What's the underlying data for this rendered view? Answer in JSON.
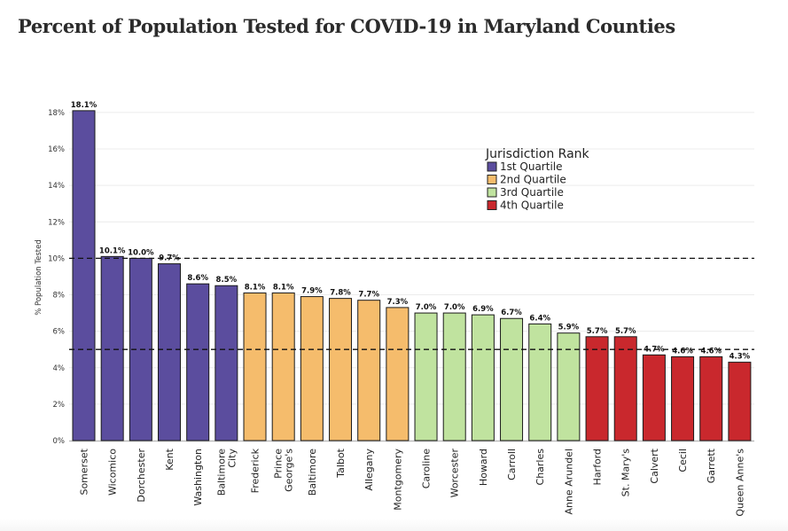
{
  "page": {
    "title": "Percent of Population Tested for COVID-19 in Maryland Counties"
  },
  "chart_data": {
    "type": "bar",
    "title": "Percent of Population Tested for COVID-19 in Maryland Counties",
    "xlabel": "",
    "ylabel": "% Population Tested",
    "ylim": [
      0,
      18.5
    ],
    "yticks": [
      0,
      2,
      4,
      6,
      8,
      10,
      12,
      14,
      16,
      18
    ],
    "ytick_labels": [
      "0%",
      "2%",
      "4%",
      "6%",
      "8%",
      "10%",
      "12%",
      "14%",
      "16%",
      "18%"
    ],
    "grid": true,
    "reference_lines": [
      10,
      5
    ],
    "categories": [
      "Somerset",
      "Wicomico",
      "Dorchester",
      "Kent",
      "Washington",
      "Baltimore City",
      "Frederick",
      "Prince George's",
      "Baltimore",
      "Talbot",
      "Allegany",
      "Montgomery",
      "Caroline",
      "Worcester",
      "Howard",
      "Carroll",
      "Charles",
      "Anne Arundel",
      "Harford",
      "St. Mary's",
      "Calvert",
      "Cecil",
      "Garrett",
      "Queen Anne's"
    ],
    "category_label_lines": [
      [
        "Somerset"
      ],
      [
        "Wicomico"
      ],
      [
        "Dorchester"
      ],
      [
        "Kent"
      ],
      [
        "Washington"
      ],
      [
        "Baltimore",
        "City"
      ],
      [
        "Frederick"
      ],
      [
        "Prince",
        "George's"
      ],
      [
        "Baltimore"
      ],
      [
        "Talbot"
      ],
      [
        "Allegany"
      ],
      [
        "Montgomery"
      ],
      [
        "Caroline"
      ],
      [
        "Worcester"
      ],
      [
        "Howard"
      ],
      [
        "Carroll"
      ],
      [
        "Charles"
      ],
      [
        "Anne Arundel"
      ],
      [
        "Harford"
      ],
      [
        "St. Mary's"
      ],
      [
        "Calvert"
      ],
      [
        "Cecil"
      ],
      [
        "Garrett"
      ],
      [
        "Queen Anne's"
      ]
    ],
    "values": [
      18.1,
      10.1,
      10.0,
      9.7,
      8.6,
      8.5,
      8.1,
      8.1,
      7.9,
      7.8,
      7.7,
      7.3,
      7.0,
      7.0,
      6.9,
      6.7,
      6.4,
      5.9,
      5.7,
      5.7,
      4.7,
      4.6,
      4.6,
      4.3
    ],
    "value_labels": [
      "18.1%",
      "10.1%",
      "10.0%",
      "9.7%",
      "8.6%",
      "8.5%",
      "8.1%",
      "8.1%",
      "7.9%",
      "7.8%",
      "7.7%",
      "7.3%",
      "7.0%",
      "7.0%",
      "6.9%",
      "6.7%",
      "6.4%",
      "5.9%",
      "5.7%",
      "5.7%",
      "4.7%",
      "4.6%",
      "4.6%",
      "4.3%"
    ],
    "quartile": [
      1,
      1,
      1,
      1,
      1,
      1,
      2,
      2,
      2,
      2,
      2,
      2,
      3,
      3,
      3,
      3,
      3,
      3,
      4,
      4,
      4,
      4,
      4,
      4
    ],
    "legend": {
      "title": "Jurisdiction Rank",
      "position": "top-right",
      "entries": [
        {
          "label": "1st Quartile",
          "color": "#5b4d9e"
        },
        {
          "label": "2nd Quartile",
          "color": "#f5bc6c"
        },
        {
          "label": "3rd Quartile",
          "color": "#c0e39f"
        },
        {
          "label": "4th Quartile",
          "color": "#c9282d"
        }
      ]
    }
  }
}
